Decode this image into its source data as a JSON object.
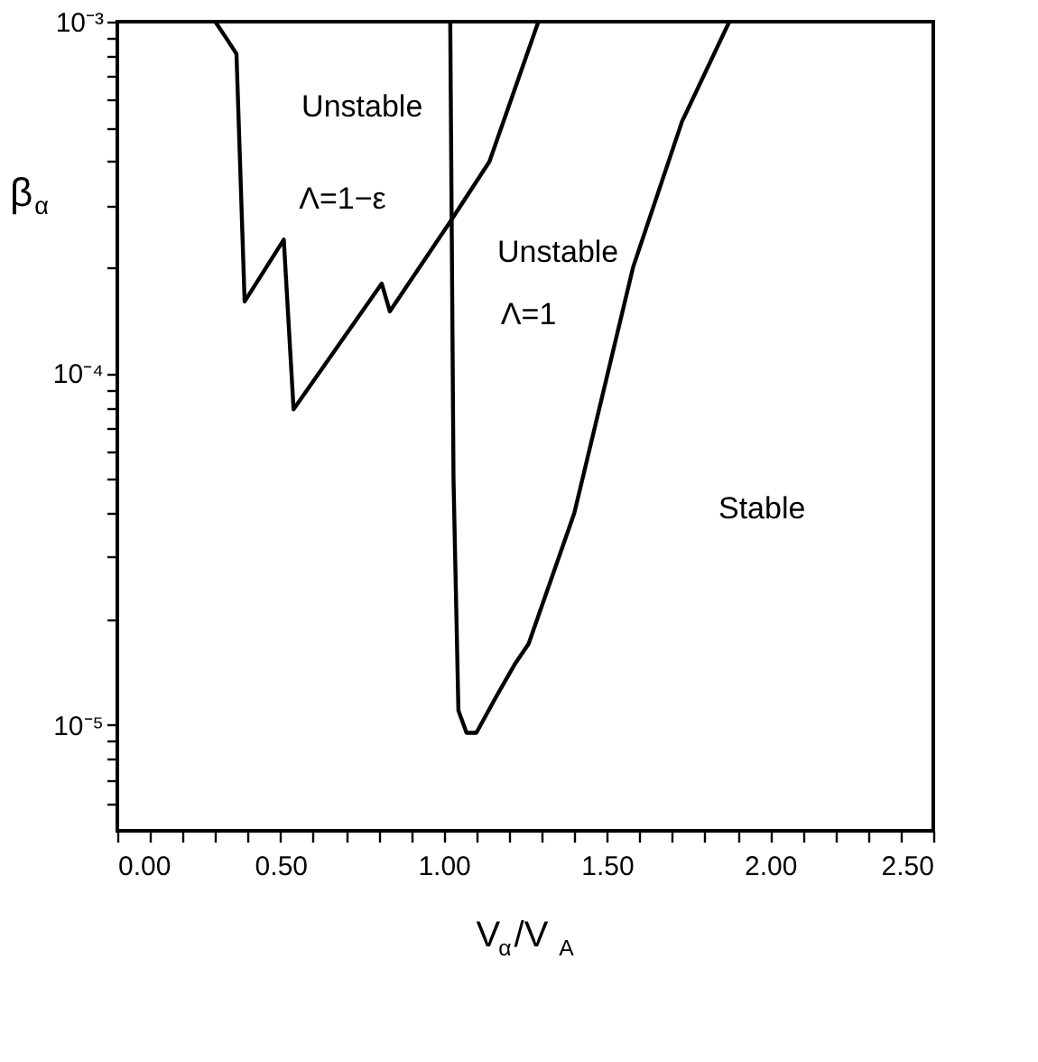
{
  "chart_data": {
    "type": "line",
    "xlabel": "V$_{α}$/V$_{A}$",
    "ylabel": "β$_{α}$",
    "log": "y",
    "grid": false,
    "marker": "none",
    "line_style": "solid",
    "xlim": [
      0,
      2.5
    ],
    "ylim": [
      5e-06,
      0.001
    ],
    "xticks": [
      {
        "value": 0,
        "label": "0.00"
      },
      {
        "value": 0.1,
        "label": null
      },
      {
        "value": 0.2,
        "label": null
      },
      {
        "value": 0.3,
        "label": null
      },
      {
        "value": 0.4,
        "label": null
      },
      {
        "value": 0.5,
        "label": "0.50"
      },
      {
        "value": 0.6,
        "label": null
      },
      {
        "value": 0.7,
        "label": null
      },
      {
        "value": 0.8,
        "label": null
      },
      {
        "value": 0.9,
        "label": null
      },
      {
        "value": 1,
        "label": "1.00"
      },
      {
        "value": 1.1,
        "label": null
      },
      {
        "value": 1.2,
        "label": null
      },
      {
        "value": 1.3,
        "label": null
      },
      {
        "value": 1.4,
        "label": null
      },
      {
        "value": 1.5,
        "label": "1.50"
      },
      {
        "value": 1.6,
        "label": null
      },
      {
        "value": 1.7,
        "label": null
      },
      {
        "value": 1.8,
        "label": null
      },
      {
        "value": 1.9,
        "label": null
      },
      {
        "value": 2,
        "label": "2.00"
      },
      {
        "value": 2.1,
        "label": null
      },
      {
        "value": 2.2,
        "label": null
      },
      {
        "value": 2.3,
        "label": null
      },
      {
        "value": 2.4,
        "label": null
      },
      {
        "value": 2.5,
        "label": "2.50"
      }
    ],
    "yticks": [
      {
        "value": 6e-06,
        "label": null
      },
      {
        "value": 7e-06,
        "label": null
      },
      {
        "value": 8e-06,
        "label": null
      },
      {
        "value": 9e-06,
        "label": null
      },
      {
        "value": 1e-05,
        "label": "10⁻⁵"
      },
      {
        "value": 2e-05,
        "label": null
      },
      {
        "value": 3e-05,
        "label": null
      },
      {
        "value": 4e-05,
        "label": null
      },
      {
        "value": 5e-05,
        "label": null
      },
      {
        "value": 6e-05,
        "label": null
      },
      {
        "value": 7e-05,
        "label": null
      },
      {
        "value": 8e-05,
        "label": null
      },
      {
        "value": 9e-05,
        "label": null
      },
      {
        "value": 0.0001,
        "label": "10⁻⁴"
      },
      {
        "value": 0.0002,
        "label": null
      },
      {
        "value": 0.0003,
        "label": null
      },
      {
        "value": 0.0004,
        "label": null
      },
      {
        "value": 0.0005,
        "label": null
      },
      {
        "value": 0.0006,
        "label": null
      },
      {
        "value": 0.0007,
        "label": null
      },
      {
        "value": 0.0008,
        "label": null
      },
      {
        "value": 0.0009,
        "label": null
      },
      {
        "value": 0.001,
        "label": "10⁻³"
      }
    ],
    "series": [
      {
        "color": "#000000",
        "x": [
          0.3,
          0.34,
          0.365,
          0.39,
          0.51,
          0.54,
          0.81,
          0.835,
          1.02,
          1.14,
          1.29
        ],
        "values": [
          0.001,
          0.00088,
          0.00081,
          0.00016,
          0.00024,
          7.9e-05,
          0.00018,
          0.00015,
          0.00027,
          0.0004,
          0.001
        ]
      },
      {
        "color": "#000000",
        "x": [
          1.02,
          1.03,
          1.045,
          1.07,
          1.1,
          1.16,
          1.22,
          1.26,
          1.4,
          1.58,
          1.73,
          1.875
        ],
        "values": [
          0.001,
          5e-05,
          1.1e-05,
          9.5e-06,
          9.5e-06,
          1.2e-05,
          1.5e-05,
          1.7e-05,
          4e-05,
          0.0002,
          0.00052,
          0.001
        ]
      }
    ],
    "annotations": [
      "Unstable",
      "Λ=1−ε",
      "Unstable",
      "Λ=1",
      "Stable"
    ]
  }
}
